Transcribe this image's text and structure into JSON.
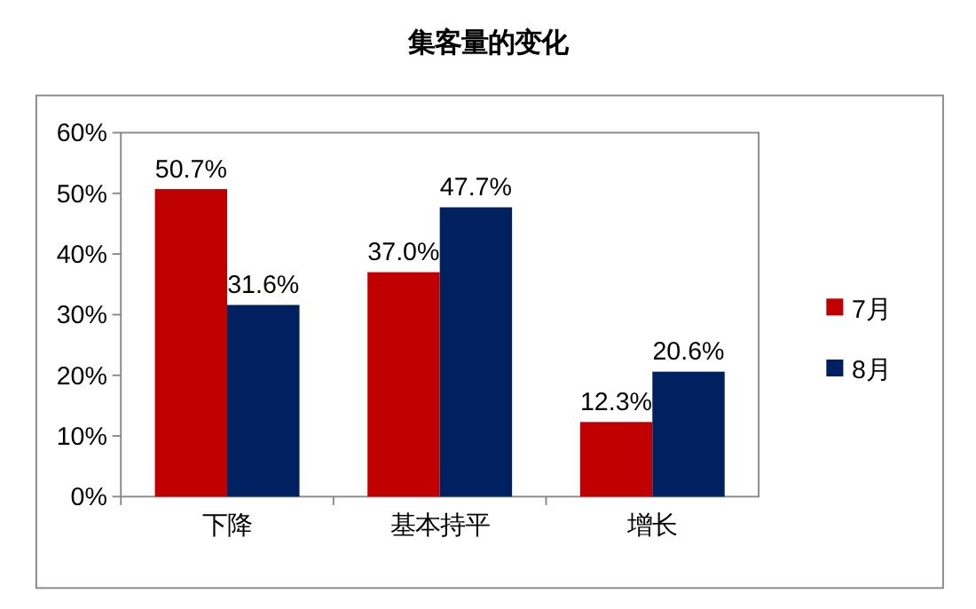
{
  "chart_data": {
    "type": "bar",
    "title": "集客量的变化",
    "categories": [
      "下降",
      "基本持平",
      "增长"
    ],
    "series": [
      {
        "name": "7月",
        "color": "#c00000",
        "values": [
          50.7,
          37.0,
          12.3
        ],
        "value_labels": [
          "50.7%",
          "37.0%",
          "12.3%"
        ]
      },
      {
        "name": "8月",
        "color": "#002060",
        "values": [
          31.6,
          47.7,
          20.6
        ],
        "value_labels": [
          "31.6%",
          "47.7%",
          "20.6%"
        ]
      }
    ],
    "ylim": [
      0,
      60
    ],
    "yticks": [
      {
        "value": 0,
        "label": "0%"
      },
      {
        "value": 10,
        "label": "10%"
      },
      {
        "value": 20,
        "label": "20%"
      },
      {
        "value": 30,
        "label": "30%"
      },
      {
        "value": 40,
        "label": "40%"
      },
      {
        "value": 50,
        "label": "50%"
      },
      {
        "value": 60,
        "label": "60%"
      }
    ],
    "legend": "right"
  }
}
